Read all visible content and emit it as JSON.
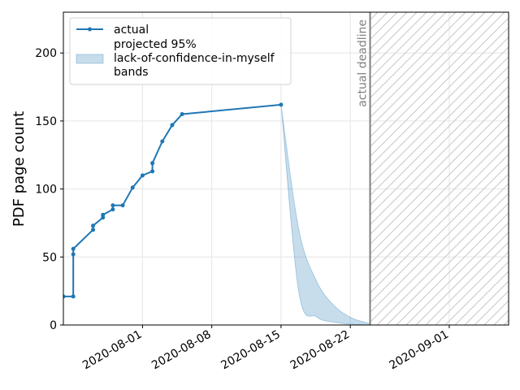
{
  "chart_data": {
    "type": "line",
    "xlabel": "",
    "ylabel": "PDF page count",
    "ylim": [
      0,
      230
    ],
    "xlim": [
      "2020-07-24",
      "2020-09-07"
    ],
    "x_ticks": [
      "2020-08-01",
      "2020-08-08",
      "2020-08-15",
      "2020-08-22",
      "2020-09-01"
    ],
    "y_ticks": [
      0,
      50,
      100,
      150,
      200
    ],
    "grid": true,
    "legend_position": "upper-left",
    "legend": [
      "actual",
      "projected 95%\nlack-of-confidence-in-myself\nbands"
    ],
    "series": [
      {
        "name": "actual",
        "color": "#1f77b4",
        "points": [
          [
            "2020-07-24",
            21
          ],
          [
            "2020-07-25",
            21
          ],
          [
            "2020-07-25",
            52
          ],
          [
            "2020-07-25",
            56
          ],
          [
            "2020-07-27",
            70
          ],
          [
            "2020-07-27",
            73
          ],
          [
            "2020-07-28",
            79
          ],
          [
            "2020-07-28",
            81
          ],
          [
            "2020-07-29",
            85
          ],
          [
            "2020-07-29",
            88
          ],
          [
            "2020-07-30",
            88
          ],
          [
            "2020-07-31",
            101
          ],
          [
            "2020-08-01",
            110
          ],
          [
            "2020-08-02",
            113
          ],
          [
            "2020-08-02",
            119
          ],
          [
            "2020-08-03",
            135
          ],
          [
            "2020-08-04",
            147
          ],
          [
            "2020-08-05",
            155
          ],
          [
            "2020-08-15",
            162
          ]
        ]
      }
    ],
    "band": {
      "name": "projected 95%\nlack-of-confidence-in-myself\nbands",
      "color": "#1f77b4",
      "start": [
        "2020-08-15",
        162
      ],
      "end": "2020-08-24",
      "upper": [
        [
          0,
          162
        ],
        [
          0.2,
          70
        ],
        [
          0.4,
          32
        ],
        [
          0.6,
          14
        ],
        [
          0.8,
          5
        ],
        [
          1,
          1
        ]
      ],
      "lower": [
        [
          0,
          162
        ],
        [
          0.2,
          24
        ],
        [
          0.4,
          6
        ],
        [
          0.6,
          2
        ],
        [
          0.8,
          0.5
        ],
        [
          1,
          0
        ]
      ]
    },
    "deadline": {
      "date": "2020-08-24",
      "label": "actual deadline",
      "color": "#7f7f7f"
    }
  }
}
